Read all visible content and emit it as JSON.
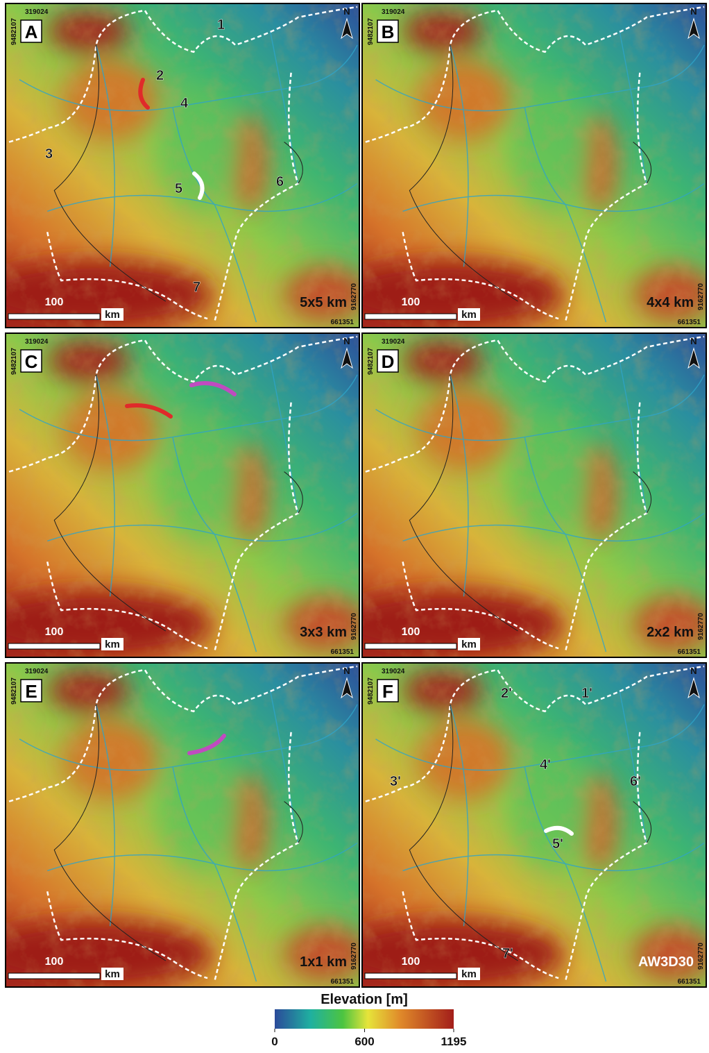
{
  "panels": [
    {
      "letter": "A",
      "resolution": "5x5 km",
      "labels": [
        "1",
        "2",
        "3",
        "4",
        "5",
        "6",
        "7"
      ]
    },
    {
      "letter": "B",
      "resolution": "4x4 km",
      "labels": []
    },
    {
      "letter": "C",
      "resolution": "3x3 km",
      "labels": []
    },
    {
      "letter": "D",
      "resolution": "2x2 km",
      "labels": []
    },
    {
      "letter": "E",
      "resolution": "1x1 km",
      "labels": []
    },
    {
      "letter": "F",
      "resolution": "AW3D30",
      "labels": [
        "1'",
        "2'",
        "3'",
        "4'",
        "5'",
        "6'",
        "7'"
      ]
    }
  ],
  "corner_labels": {
    "west": "319024",
    "north": "9482107",
    "east": "661351",
    "south": "9162770",
    "north_arrow": "N"
  },
  "scale_bar": {
    "distance": "100",
    "unit": "km"
  },
  "legend": {
    "title": "Elevation [m]",
    "ticks": [
      0,
      600,
      1195
    ]
  }
}
